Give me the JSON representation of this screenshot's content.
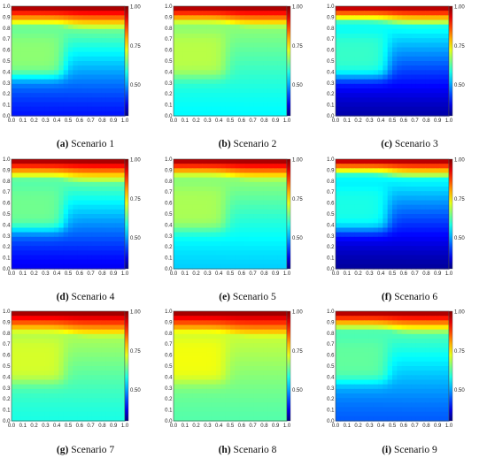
{
  "chart_data": [
    {
      "type": "heatmap",
      "label": "(a)",
      "caption": "Scenario 1",
      "xlim": [
        0,
        1
      ],
      "ylim": [
        0,
        1
      ],
      "colorbar": {
        "min": 0.3,
        "max": 1.0,
        "ticks": [
          "1.00",
          "0.75",
          "0.50"
        ]
      },
      "profile": {
        "top": 1.0,
        "front_y": 0.82,
        "upper": 0.64,
        "bottom": 0.4,
        "blob": 0.66
      }
    },
    {
      "type": "heatmap",
      "label": "(b)",
      "caption": "Scenario 2",
      "xlim": [
        0,
        1
      ],
      "ylim": [
        0,
        1
      ],
      "colorbar": {
        "min": 0.3,
        "max": 1.0,
        "ticks": [
          "1.00",
          "0.75",
          "0.50"
        ]
      },
      "profile": {
        "top": 1.0,
        "front_y": 0.84,
        "upper": 0.66,
        "bottom": 0.56,
        "blob": 0.69
      }
    },
    {
      "type": "heatmap",
      "label": "(c)",
      "caption": "Scenario 3",
      "xlim": [
        0,
        1
      ],
      "ylim": [
        0,
        1
      ],
      "colorbar": {
        "min": 0.3,
        "max": 1.0,
        "ticks": [
          "1.00",
          "0.75",
          "0.50"
        ]
      },
      "profile": {
        "top": 1.0,
        "front_y": 0.85,
        "upper": 0.58,
        "bottom": 0.33,
        "blob": 0.6
      }
    },
    {
      "type": "heatmap",
      "label": "(d)",
      "caption": "Scenario 4",
      "xlim": [
        0,
        1
      ],
      "ylim": [
        0,
        1
      ],
      "colorbar": {
        "min": 0.3,
        "max": 1.0,
        "ticks": [
          "1.00",
          "0.75",
          "0.50"
        ]
      },
      "profile": {
        "top": 1.0,
        "front_y": 0.82,
        "upper": 0.63,
        "bottom": 0.38,
        "blob": 0.64
      }
    },
    {
      "type": "heatmap",
      "label": "(e)",
      "caption": "Scenario 5",
      "xlim": [
        0,
        1
      ],
      "ylim": [
        0,
        1
      ],
      "colorbar": {
        "min": 0.3,
        "max": 1.0,
        "ticks": [
          "1.00",
          "0.75",
          "0.50"
        ]
      },
      "profile": {
        "top": 1.0,
        "front_y": 0.84,
        "upper": 0.66,
        "bottom": 0.53,
        "blob": 0.68
      }
    },
    {
      "type": "heatmap",
      "label": "(f)",
      "caption": "Scenario 6",
      "xlim": [
        0,
        1
      ],
      "ylim": [
        0,
        1
      ],
      "colorbar": {
        "min": 0.3,
        "max": 1.0,
        "ticks": [
          "1.00",
          "0.75",
          "0.50"
        ]
      },
      "profile": {
        "top": 1.0,
        "front_y": 0.85,
        "upper": 0.57,
        "bottom": 0.32,
        "blob": 0.58
      }
    },
    {
      "type": "heatmap",
      "label": "(g)",
      "caption": "Scenario 7",
      "xlim": [
        0,
        1
      ],
      "ylim": [
        0,
        1
      ],
      "colorbar": {
        "min": 0.3,
        "max": 1.0,
        "ticks": [
          "1.00",
          "0.75",
          "0.50"
        ]
      },
      "profile": {
        "top": 1.0,
        "front_y": 0.8,
        "upper": 0.68,
        "bottom": 0.58,
        "blob": 0.71
      }
    },
    {
      "type": "heatmap",
      "label": "(h)",
      "caption": "Scenario 8",
      "xlim": [
        0,
        1
      ],
      "ylim": [
        0,
        1
      ],
      "colorbar": {
        "min": 0.3,
        "max": 1.0,
        "ticks": [
          "1.00",
          "0.75",
          "0.50"
        ]
      },
      "profile": {
        "top": 1.0,
        "front_y": 0.8,
        "upper": 0.7,
        "bottom": 0.62,
        "blob": 0.73
      }
    },
    {
      "type": "heatmap",
      "label": "(i)",
      "caption": "Scenario 9",
      "xlim": [
        0,
        1
      ],
      "ylim": [
        0,
        1
      ],
      "colorbar": {
        "min": 0.3,
        "max": 1.0,
        "ticks": [
          "1.00",
          "0.75",
          "0.50"
        ]
      },
      "profile": {
        "top": 1.0,
        "front_y": 0.83,
        "upper": 0.62,
        "bottom": 0.45,
        "blob": 0.63
      }
    }
  ],
  "axis_ticks": [
    "0.0",
    "0.1",
    "0.2",
    "0.3",
    "0.4",
    "0.5",
    "0.6",
    "0.7",
    "0.8",
    "0.9",
    "1.0"
  ],
  "colormap": "jet"
}
